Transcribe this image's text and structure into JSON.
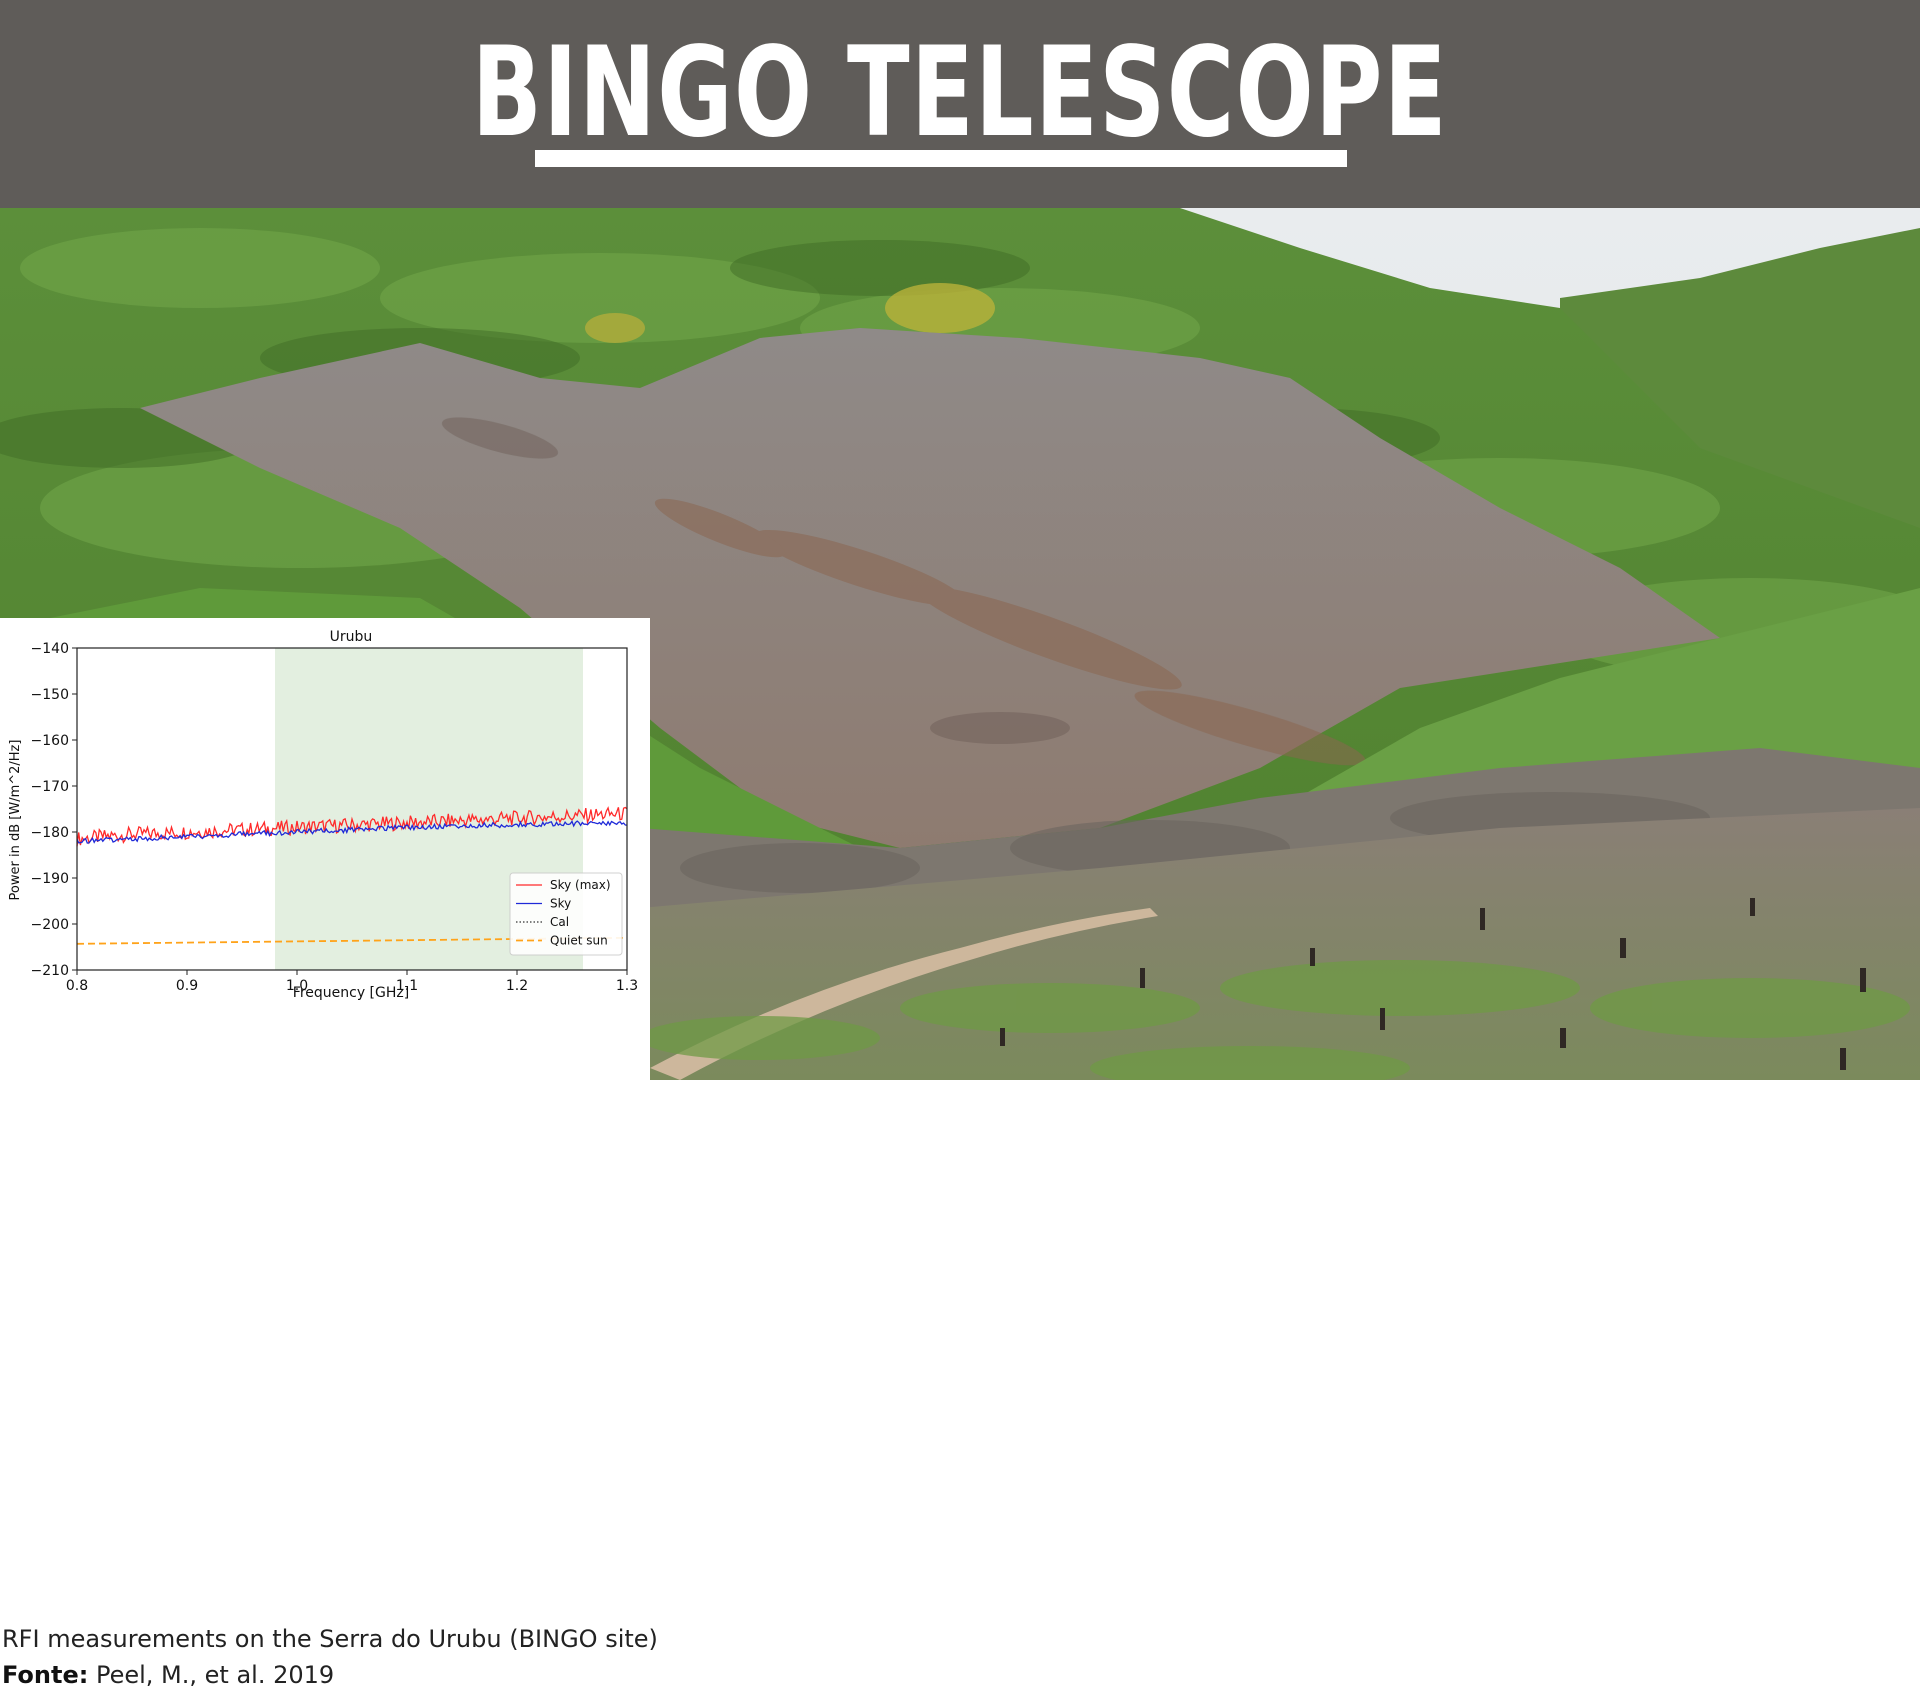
{
  "slide": {
    "title": "BINGO TELESCOPE",
    "colors": {
      "header_bg": "#5f5c59",
      "title": "#ffffff"
    }
  },
  "photo": {
    "subject": "deforested hillside of the Serra do Urubu with green scrub vegetation and a dirt path"
  },
  "caption": {
    "line1": "RFI measurements on the Serra do Urubu (BINGO site)",
    "source_label": "Fonte:",
    "source_text": " Peel, M., et al. 2019"
  },
  "chart_data": {
    "type": "line",
    "title": "Urubu",
    "xlabel": "Frequency [GHz]",
    "ylabel": "Power in dB [W/m^2/Hz]",
    "xlim": [
      0.8,
      1.3
    ],
    "ylim": [
      -210,
      -140
    ],
    "xticks": [
      "0.8",
      "0.9",
      "1.0",
      "1.1",
      "1.2",
      "1.3"
    ],
    "yticks": [
      "−140",
      "−150",
      "−160",
      "−170",
      "−180",
      "−190",
      "−200",
      "−210"
    ],
    "shaded_band": {
      "from": 0.98,
      "to": 1.26,
      "color": "#e3efe0"
    },
    "legend_position": "lower-right",
    "grid": false,
    "series": [
      {
        "name": "Sky (max)",
        "color": "#ff2a2a",
        "style": "solid",
        "x": [
          0.8,
          0.85,
          0.9,
          0.95,
          1.0,
          1.05,
          1.1,
          1.15,
          1.2,
          1.25,
          1.3
        ],
        "y": [
          -181.5,
          -180.5,
          -180,
          -179.5,
          -179,
          -178.5,
          -178,
          -177.5,
          -177,
          -176.5,
          -176
        ]
      },
      {
        "name": "Sky",
        "color": "#1f2ad8",
        "style": "solid",
        "x": [
          0.8,
          0.85,
          0.9,
          0.95,
          1.0,
          1.05,
          1.1,
          1.15,
          1.2,
          1.25,
          1.3
        ],
        "y": [
          -182,
          -181.5,
          -181,
          -180.5,
          -180,
          -179.5,
          -179,
          -178.7,
          -178.4,
          -178.2,
          -178
        ]
      },
      {
        "name": "Cal",
        "color": "#333333",
        "style": "dotted",
        "x": [],
        "y": []
      },
      {
        "name": "Quiet sun",
        "color": "#ffa31a",
        "style": "dashed",
        "x": [
          0.8,
          1.3
        ],
        "y": [
          -204.3,
          -203
        ]
      }
    ]
  }
}
